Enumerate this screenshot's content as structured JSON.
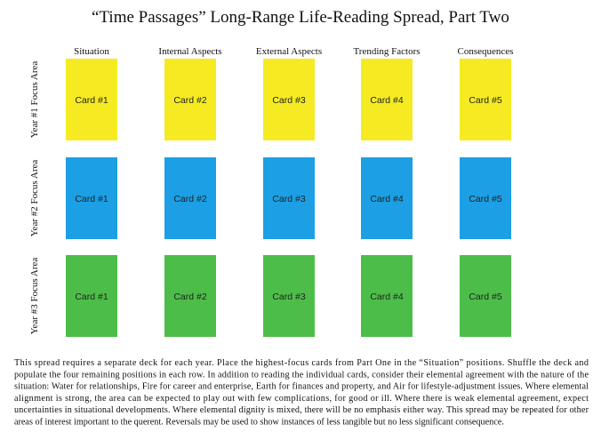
{
  "title": "“Time Passages” Long-Range Life-Reading Spread, Part Two",
  "columns": [
    "Situation",
    "Internal Aspects",
    "External Aspects",
    "Trending Factors",
    "Consequences"
  ],
  "rows": [
    {
      "label": "Year #1 Focus Area",
      "color": "#f6eb22",
      "cards": [
        "Card #1",
        "Card #2",
        "Card #3",
        "Card #4",
        "Card #5"
      ]
    },
    {
      "label": "Year #2 Focus Area",
      "color": "#1c9fe4",
      "cards": [
        "Card #1",
        "Card #2",
        "Card #3",
        "Card #4",
        "Card #5"
      ]
    },
    {
      "label": "Year #3 Focus Area",
      "color": "#4dbd4a",
      "cards": [
        "Card #1",
        "Card #2",
        "Card #3",
        "Card #4",
        "Card #5"
      ]
    }
  ],
  "description": [
    "This spread requires a separate deck for each year. Place the highest-focus cards from Part One in the “Situation” positions. Shuffle the deck and",
    "populate the four remaining positions in each row. In addition to reading the individual cards, consider their elemental agreement with the nature of the",
    "situation: Water for relationships, Fire for career and enterprise, Earth for finances and property, and Air for lifestyle-adjustment issues. Where elemental",
    "alignment is strong, the area can be expected to play out with few complications, for good or ill. Where there is weak elemental agreement, expect",
    "uncertainties in situational developments. Where elemental dignity is mixed, there will be no emphasis either way. This spread may be repeated for other",
    "areas of interest important to the querent. Reversals may be used to show instances of less tangible but no less significant consequence."
  ]
}
